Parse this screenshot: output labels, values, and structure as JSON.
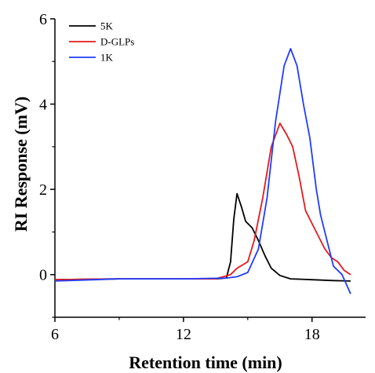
{
  "chart_data": {
    "type": "line",
    "title": "",
    "xlabel": "Retention time (min)",
    "ylabel": "RI Response (mV)",
    "xlim": [
      6,
      20.5
    ],
    "ylim": [
      -1,
      6
    ],
    "xticks": [
      6,
      12,
      18
    ],
    "yticks": [
      0,
      2,
      4,
      6
    ],
    "grid": false,
    "legend": "top-left",
    "series": [
      {
        "name": "5K",
        "color": "#000000",
        "points": [
          [
            6,
            -0.12
          ],
          [
            9,
            -0.1
          ],
          [
            12,
            -0.1
          ],
          [
            13.5,
            -0.1
          ],
          [
            14.0,
            -0.08
          ],
          [
            14.2,
            0.3
          ],
          [
            14.35,
            1.3
          ],
          [
            14.5,
            1.9
          ],
          [
            14.7,
            1.6
          ],
          [
            14.9,
            1.25
          ],
          [
            15.2,
            1.1
          ],
          [
            15.5,
            0.8
          ],
          [
            15.8,
            0.45
          ],
          [
            16.1,
            0.15
          ],
          [
            16.5,
            -0.02
          ],
          [
            17,
            -0.1
          ],
          [
            18,
            -0.12
          ],
          [
            19,
            -0.14
          ],
          [
            19.8,
            -0.15
          ]
        ]
      },
      {
        "name": "D-GLPs",
        "color": "#e41a1c",
        "points": [
          [
            6,
            -0.12
          ],
          [
            9,
            -0.1
          ],
          [
            12,
            -0.1
          ],
          [
            13.5,
            -0.1
          ],
          [
            14.2,
            0.0
          ],
          [
            14.5,
            0.15
          ],
          [
            15.0,
            0.3
          ],
          [
            15.3,
            0.8
          ],
          [
            15.7,
            1.8
          ],
          [
            16.1,
            3.0
          ],
          [
            16.5,
            3.55
          ],
          [
            16.8,
            3.3
          ],
          [
            17.1,
            3.0
          ],
          [
            17.4,
            2.3
          ],
          [
            17.7,
            1.5
          ],
          [
            18.0,
            1.2
          ],
          [
            18.3,
            0.9
          ],
          [
            18.6,
            0.6
          ],
          [
            18.9,
            0.4
          ],
          [
            19.2,
            0.3
          ],
          [
            19.5,
            0.1
          ],
          [
            19.8,
            0.0
          ]
        ]
      },
      {
        "name": "1K",
        "color": "#1f3cff",
        "points": [
          [
            6,
            -0.15
          ],
          [
            9,
            -0.1
          ],
          [
            12,
            -0.1
          ],
          [
            14.0,
            -0.08
          ],
          [
            14.5,
            -0.05
          ],
          [
            15.0,
            0.05
          ],
          [
            15.5,
            0.6
          ],
          [
            15.9,
            1.8
          ],
          [
            16.3,
            3.6
          ],
          [
            16.7,
            4.9
          ],
          [
            17.0,
            5.3
          ],
          [
            17.3,
            4.9
          ],
          [
            17.6,
            4.0
          ],
          [
            17.9,
            3.2
          ],
          [
            18.2,
            2.0
          ],
          [
            18.4,
            1.4
          ],
          [
            18.7,
            0.8
          ],
          [
            19.0,
            0.2
          ],
          [
            19.4,
            0.0
          ],
          [
            19.8,
            -0.45
          ]
        ]
      }
    ]
  }
}
